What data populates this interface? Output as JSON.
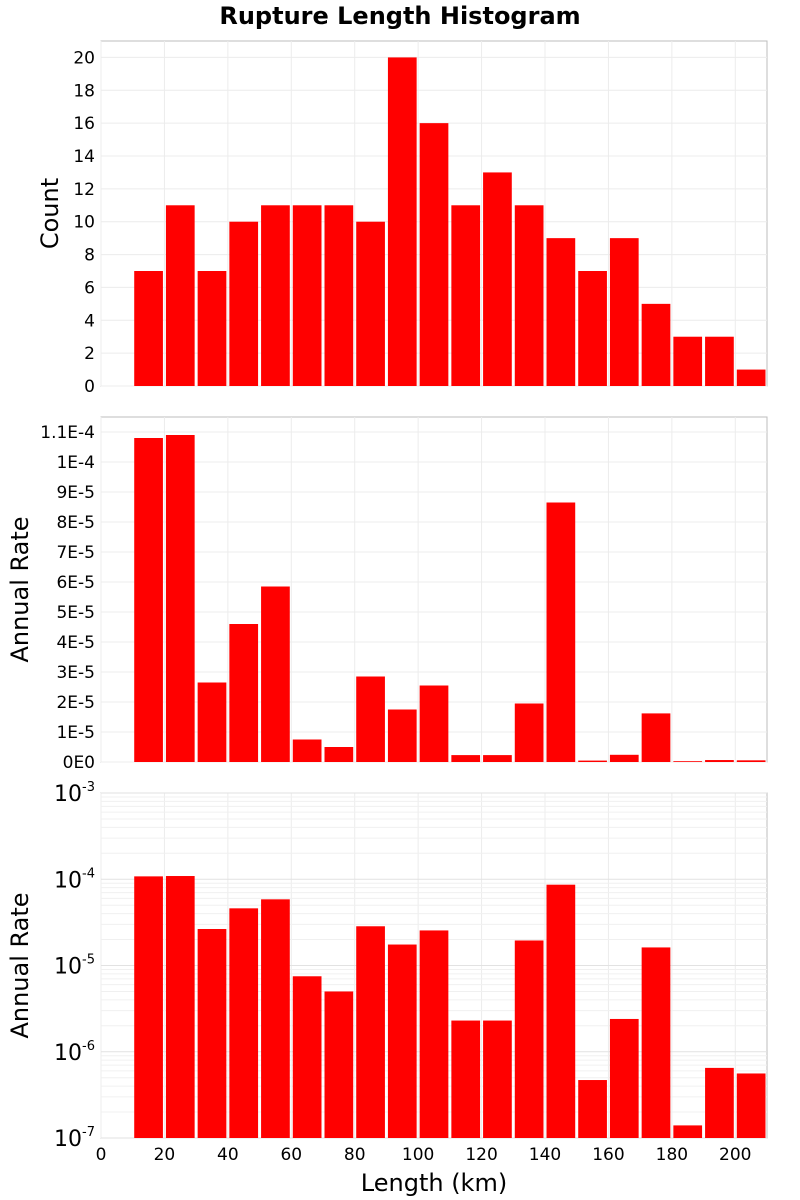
{
  "chart_data": {
    "title": "Rupture Length Histogram",
    "xlabel": "Length (km)",
    "xlim": [
      0,
      210
    ],
    "xticks": [
      "0",
      "20",
      "40",
      "60",
      "80",
      "100",
      "120",
      "140",
      "160",
      "180",
      "200"
    ],
    "bar_color": "#ff0000",
    "bin_width": 10,
    "bin_starts": [
      10,
      20,
      30,
      40,
      50,
      60,
      70,
      80,
      90,
      100,
      110,
      120,
      130,
      140,
      150,
      160,
      170,
      180,
      190,
      200
    ],
    "panels": [
      {
        "type": "bar",
        "ylabel": "Count",
        "scale": "linear",
        "ylim": [
          0,
          21
        ],
        "yticks": [
          "0",
          "2",
          "4",
          "6",
          "8",
          "10",
          "12",
          "14",
          "16",
          "18",
          "20"
        ],
        "values": [
          7,
          11,
          7,
          10,
          11,
          11,
          11,
          10,
          20,
          16,
          11,
          13,
          11,
          9,
          7,
          9,
          5,
          3,
          3,
          1
        ]
      },
      {
        "type": "bar",
        "ylabel": "Annual Rate",
        "scale": "linear",
        "ylim": [
          0,
          0.000115
        ],
        "yticks": [
          "0E0",
          "1E-5",
          "2E-5",
          "3E-5",
          "4E-5",
          "5E-5",
          "6E-5",
          "7E-5",
          "8E-5",
          "9E-5",
          "1E-4",
          "1.1E-4"
        ],
        "values": [
          0.000108,
          0.000109,
          2.65e-05,
          4.6e-05,
          5.85e-05,
          7.5e-06,
          5e-06,
          2.85e-05,
          1.75e-05,
          2.55e-05,
          2.3e-06,
          2.3e-06,
          1.95e-05,
          8.65e-05,
          4.7e-07,
          2.4e-06,
          1.62e-05,
          1.4e-07,
          6.5e-07,
          5.6e-07
        ]
      },
      {
        "type": "bar",
        "ylabel": "Annual Rate",
        "scale": "log",
        "ylim": [
          1e-07,
          0.001
        ],
        "yticks": [
          {
            "base": "10",
            "exp": "-7"
          },
          {
            "base": "10",
            "exp": "-6"
          },
          {
            "base": "10",
            "exp": "-5"
          },
          {
            "base": "10",
            "exp": "-4"
          },
          {
            "base": "10",
            "exp": "-3"
          }
        ],
        "values": [
          0.000108,
          0.000109,
          2.65e-05,
          4.6e-05,
          5.85e-05,
          7.5e-06,
          5e-06,
          2.85e-05,
          1.75e-05,
          2.55e-05,
          2.3e-06,
          2.3e-06,
          1.95e-05,
          8.65e-05,
          4.7e-07,
          2.4e-06,
          1.62e-05,
          1.4e-07,
          6.5e-07,
          5.6e-07
        ]
      }
    ]
  }
}
